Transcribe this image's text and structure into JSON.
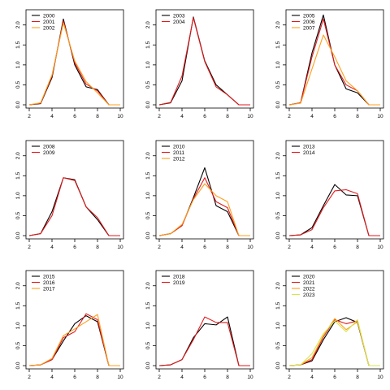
{
  "chart_data": [
    {
      "type": "line",
      "x": [
        2,
        3,
        4,
        5,
        6,
        7,
        8,
        9,
        10
      ],
      "xticks": [
        2,
        4,
        6,
        8,
        10
      ],
      "yticks": [
        0.0,
        0.5,
        1.0,
        1.5,
        2.0
      ],
      "xlim": [
        2,
        10
      ],
      "ylim": [
        0,
        2.3
      ],
      "grid": false,
      "legend": "top-left",
      "series": [
        {
          "name": "2000",
          "color": "#000000",
          "values": [
            0.0,
            0.03,
            0.68,
            2.15,
            1.0,
            0.45,
            0.38,
            0.0,
            0.0
          ]
        },
        {
          "name": "2001",
          "color": "#e31a1c",
          "values": [
            0.0,
            0.04,
            0.72,
            2.1,
            1.05,
            0.52,
            0.35,
            0.0,
            0.0
          ]
        },
        {
          "name": "2002",
          "color": "#ff9f1c",
          "values": [
            0.0,
            0.05,
            0.75,
            2.05,
            1.1,
            0.58,
            0.3,
            0.0,
            0.0
          ]
        }
      ]
    },
    {
      "type": "line",
      "x": [
        2,
        3,
        4,
        5,
        6,
        7,
        8,
        9,
        10
      ],
      "xticks": [
        2,
        4,
        6,
        8,
        10
      ],
      "yticks": [
        0.0,
        0.5,
        1.0,
        1.5,
        2.0
      ],
      "xlim": [
        2,
        10
      ],
      "ylim": [
        0,
        2.3
      ],
      "grid": false,
      "legend": "top-left",
      "series": [
        {
          "name": "2003",
          "color": "#000000",
          "values": [
            0.0,
            0.05,
            0.6,
            2.2,
            1.1,
            0.5,
            0.25,
            0.0,
            0.0
          ]
        },
        {
          "name": "2004",
          "color": "#e31a1c",
          "values": [
            0.0,
            0.06,
            0.72,
            2.18,
            1.08,
            0.45,
            0.25,
            0.0,
            0.0
          ]
        }
      ]
    },
    {
      "type": "line",
      "x": [
        2,
        3,
        4,
        5,
        6,
        7,
        8,
        9,
        10
      ],
      "xticks": [
        2,
        4,
        6,
        8,
        10
      ],
      "yticks": [
        0.0,
        0.5,
        1.0,
        1.5,
        2.0
      ],
      "xlim": [
        2,
        10
      ],
      "ylim": [
        0,
        2.3
      ],
      "grid": false,
      "legend": "top-left",
      "series": [
        {
          "name": "2005",
          "color": "#000000",
          "values": [
            0.0,
            0.05,
            1.3,
            2.25,
            1.0,
            0.4,
            0.3,
            0.0,
            0.0
          ]
        },
        {
          "name": "2006",
          "color": "#e31a1c",
          "values": [
            0.0,
            0.05,
            1.2,
            2.15,
            1.0,
            0.5,
            0.35,
            0.0,
            0.0
          ]
        },
        {
          "name": "2007",
          "color": "#ff9f1c",
          "values": [
            0.0,
            0.04,
            0.9,
            1.75,
            1.2,
            0.6,
            0.35,
            0.0,
            0.0
          ]
        }
      ]
    },
    {
      "type": "line",
      "x": [
        2,
        3,
        4,
        5,
        6,
        7,
        8,
        9,
        10
      ],
      "xticks": [
        2,
        4,
        6,
        8,
        10
      ],
      "yticks": [
        0.0,
        0.5,
        1.0,
        1.5,
        2.0
      ],
      "xlim": [
        2,
        10
      ],
      "ylim": [
        0,
        2.3
      ],
      "grid": false,
      "legend": "top-left",
      "series": [
        {
          "name": "2008",
          "color": "#000000",
          "values": [
            0.0,
            0.05,
            0.6,
            1.45,
            1.4,
            0.72,
            0.4,
            0.0,
            0.0
          ]
        },
        {
          "name": "2009",
          "color": "#e31a1c",
          "values": [
            0.0,
            0.05,
            0.5,
            1.45,
            1.38,
            0.72,
            0.45,
            0.0,
            0.0
          ]
        }
      ]
    },
    {
      "type": "line",
      "x": [
        2,
        3,
        4,
        5,
        6,
        7,
        8,
        9,
        10
      ],
      "xticks": [
        2,
        4,
        6,
        8,
        10
      ],
      "yticks": [
        0.0,
        0.5,
        1.0,
        1.5,
        2.0
      ],
      "xlim": [
        2,
        10
      ],
      "ylim": [
        0,
        2.3
      ],
      "grid": false,
      "legend": "top-left",
      "series": [
        {
          "name": "2010",
          "color": "#000000",
          "values": [
            0.0,
            0.05,
            0.25,
            0.95,
            1.7,
            0.75,
            0.6,
            0.0,
            0.0
          ]
        },
        {
          "name": "2011",
          "color": "#e31a1c",
          "values": [
            0.0,
            0.05,
            0.25,
            0.92,
            1.45,
            0.85,
            0.7,
            0.0,
            0.0
          ]
        },
        {
          "name": "2012",
          "color": "#ff9f1c",
          "values": [
            0.0,
            0.05,
            0.28,
            0.9,
            1.3,
            1.0,
            0.85,
            0.0,
            0.0
          ]
        }
      ]
    },
    {
      "type": "line",
      "x": [
        2,
        3,
        4,
        5,
        6,
        7,
        8,
        9,
        10
      ],
      "xticks": [
        2,
        4,
        6,
        8,
        10
      ],
      "yticks": [
        0.0,
        0.5,
        1.0,
        1.5,
        2.0
      ],
      "xlim": [
        2,
        10
      ],
      "ylim": [
        0,
        2.3
      ],
      "grid": false,
      "legend": "top-left",
      "series": [
        {
          "name": "2013",
          "color": "#000000",
          "values": [
            0.0,
            0.02,
            0.2,
            0.75,
            1.28,
            1.02,
            1.0,
            0.0,
            0.0
          ]
        },
        {
          "name": "2014",
          "color": "#e31a1c",
          "values": [
            0.0,
            0.02,
            0.15,
            0.7,
            1.12,
            1.15,
            1.05,
            0.0,
            0.0
          ]
        }
      ]
    },
    {
      "type": "line",
      "x": [
        2,
        3,
        4,
        5,
        6,
        7,
        8,
        9,
        10
      ],
      "xticks": [
        2,
        4,
        6,
        8,
        10
      ],
      "yticks": [
        0.0,
        0.5,
        1.0,
        1.5,
        2.0
      ],
      "xlim": [
        2,
        10
      ],
      "ylim": [
        0,
        2.3
      ],
      "grid": false,
      "legend": "top-left",
      "series": [
        {
          "name": "2015",
          "color": "#000000",
          "values": [
            0.0,
            0.02,
            0.15,
            0.62,
            1.05,
            1.25,
            1.1,
            0.0,
            0.0
          ]
        },
        {
          "name": "2016",
          "color": "#e31a1c",
          "values": [
            0.0,
            0.02,
            0.15,
            0.7,
            0.85,
            1.3,
            1.15,
            0.0,
            0.0
          ]
        },
        {
          "name": "2017",
          "color": "#ff9f1c",
          "values": [
            0.0,
            0.02,
            0.18,
            0.75,
            0.92,
            1.1,
            1.28,
            0.0,
            0.0
          ]
        }
      ]
    },
    {
      "type": "line",
      "x": [
        2,
        3,
        4,
        5,
        6,
        7,
        8,
        9,
        10
      ],
      "xticks": [
        2,
        4,
        6,
        8,
        10
      ],
      "yticks": [
        0.0,
        0.5,
        1.0,
        1.5,
        2.0
      ],
      "xlim": [
        2,
        10
      ],
      "ylim": [
        0,
        2.3
      ],
      "grid": false,
      "legend": "top-left",
      "series": [
        {
          "name": "2018",
          "color": "#000000",
          "values": [
            0.0,
            0.02,
            0.15,
            0.7,
            1.05,
            1.02,
            1.22,
            0.0,
            0.0
          ]
        },
        {
          "name": "2019",
          "color": "#e31a1c",
          "values": [
            0.0,
            0.02,
            0.15,
            0.65,
            1.22,
            1.08,
            1.08,
            0.0,
            0.0
          ]
        }
      ]
    },
    {
      "type": "line",
      "x": [
        2,
        3,
        4,
        5,
        6,
        7,
        8,
        9,
        10
      ],
      "xticks": [
        2,
        4,
        6,
        8,
        10
      ],
      "yticks": [
        0.0,
        0.5,
        1.0,
        1.5,
        2.0
      ],
      "xlim": [
        2,
        10
      ],
      "ylim": [
        0,
        2.3
      ],
      "grid": false,
      "legend": "top-left",
      "series": [
        {
          "name": "2020",
          "color": "#000000",
          "values": [
            0.0,
            0.02,
            0.12,
            0.65,
            1.1,
            1.2,
            1.08,
            0.0,
            0.0
          ]
        },
        {
          "name": "2021",
          "color": "#e31a1c",
          "values": [
            0.0,
            0.02,
            0.15,
            0.72,
            1.15,
            1.05,
            1.12,
            0.0,
            0.0
          ]
        },
        {
          "name": "2022",
          "color": "#ff9f1c",
          "values": [
            0.0,
            0.02,
            0.2,
            0.75,
            1.18,
            0.9,
            1.1,
            0.0,
            0.0
          ]
        },
        {
          "name": "2023",
          "color": "#d4e64c",
          "values": [
            0.0,
            0.02,
            0.3,
            0.8,
            1.12,
            0.85,
            1.15,
            0.0,
            0.0
          ]
        }
      ]
    }
  ]
}
